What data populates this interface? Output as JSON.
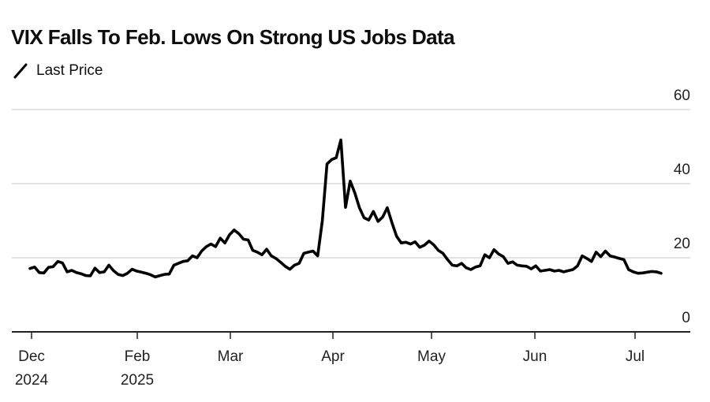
{
  "chart_data": {
    "type": "line",
    "title": "VIX Falls To Feb. Lows On Strong US Jobs Data",
    "legend": [
      {
        "name": "Last Price",
        "color": "#000000"
      }
    ],
    "legend_placement": "top-left",
    "xlabel": "",
    "ylabel": "",
    "ylim": [
      0,
      60
    ],
    "yticks": [
      {
        "value": 60,
        "label": "60"
      },
      {
        "value": 40,
        "label": "40"
      },
      {
        "value": 20,
        "label": "20"
      },
      {
        "value": 0,
        "label": "0"
      }
    ],
    "y_axis_side": "right",
    "grid": true,
    "xlim": [
      "2024-11-30",
      "2025-07-18"
    ],
    "xticks": [
      {
        "date": "2024-12-01",
        "label": "Dec",
        "sublabel": "2024"
      },
      {
        "date": "2025-02-01",
        "label": "Feb",
        "sublabel": "2025"
      },
      {
        "date": "2025-03-01",
        "label": "Mar",
        "sublabel": ""
      },
      {
        "date": "2025-04-01",
        "label": "Apr",
        "sublabel": ""
      },
      {
        "date": "2025-05-01",
        "label": "May",
        "sublabel": ""
      },
      {
        "date": "2025-06-01",
        "label": "Jun",
        "sublabel": ""
      },
      {
        "date": "2025-07-01",
        "label": "Jul",
        "sublabel": ""
      }
    ],
    "series": [
      {
        "name": "Last Price",
        "color": "#000000",
        "points": [
          [
            "2024-12-02",
            17.1
          ],
          [
            "2024-12-04",
            17.5
          ],
          [
            "2024-12-05",
            16.0
          ],
          [
            "2024-12-09",
            15.9
          ],
          [
            "2024-12-10",
            17.4
          ],
          [
            "2024-12-12",
            17.6
          ],
          [
            "2024-12-13",
            19.0
          ],
          [
            "2024-12-17",
            18.6
          ],
          [
            "2024-12-18",
            16.2
          ],
          [
            "2024-12-19",
            16.6
          ],
          [
            "2024-12-20",
            16.0
          ],
          [
            "2024-12-24",
            15.7
          ],
          [
            "2024-12-26",
            15.2
          ],
          [
            "2024-12-30",
            15.1
          ],
          [
            "2025-01-03",
            17.2
          ],
          [
            "2025-01-06",
            16.0
          ],
          [
            "2025-01-08",
            16.2
          ],
          [
            "2025-01-13",
            18.0
          ],
          [
            "2025-01-15",
            16.5
          ],
          [
            "2025-01-17",
            15.5
          ],
          [
            "2025-01-21",
            15.2
          ],
          [
            "2025-01-24",
            15.8
          ],
          [
            "2025-01-28",
            16.9
          ],
          [
            "2025-01-30",
            16.4
          ],
          [
            "2025-02-03",
            16.1
          ],
          [
            "2025-02-05",
            15.8
          ],
          [
            "2025-02-07",
            15.4
          ],
          [
            "2025-02-10",
            14.8
          ],
          [
            "2025-02-14",
            15.2
          ],
          [
            "2025-02-18",
            15.5
          ],
          [
            "2025-02-20",
            15.6
          ],
          [
            "2025-02-21",
            18.0
          ],
          [
            "2025-02-24",
            18.5
          ],
          [
            "2025-02-26",
            19.0
          ],
          [
            "2025-02-27",
            19.2
          ],
          [
            "2025-02-28",
            20.5
          ],
          [
            "2025-03-03",
            20.0
          ],
          [
            "2025-03-04",
            21.8
          ],
          [
            "2025-03-06",
            23.0
          ],
          [
            "2025-03-07",
            23.7
          ],
          [
            "2025-03-10",
            23.0
          ],
          [
            "2025-03-11",
            25.3
          ],
          [
            "2025-03-12",
            24.0
          ],
          [
            "2025-03-14",
            26.2
          ],
          [
            "2025-03-17",
            27.5
          ],
          [
            "2025-03-18",
            26.5
          ],
          [
            "2025-03-19",
            25.0
          ],
          [
            "2025-03-20",
            24.8
          ],
          [
            "2025-03-21",
            22.0
          ],
          [
            "2025-03-24",
            21.5
          ],
          [
            "2025-03-26",
            20.8
          ],
          [
            "2025-03-27",
            22.3
          ],
          [
            "2025-03-28",
            20.5
          ],
          [
            "2025-03-31",
            19.8
          ],
          [
            "2025-04-02",
            18.8
          ],
          [
            "2025-04-03",
            17.7
          ],
          [
            "2025-04-04",
            16.9
          ],
          [
            "2025-04-07",
            18.0
          ],
          [
            "2025-04-08",
            18.5
          ],
          [
            "2025-04-09",
            21.2
          ],
          [
            "2025-04-11",
            21.5
          ],
          [
            "2025-04-14",
            21.8
          ],
          [
            "2025-04-16",
            20.5
          ],
          [
            "2025-04-17",
            30.0
          ],
          [
            "2025-04-18",
            45.3
          ],
          [
            "2025-04-21",
            46.5
          ],
          [
            "2025-04-22",
            47.0
          ],
          [
            "2025-04-23",
            51.8
          ],
          [
            "2025-04-24",
            33.6
          ],
          [
            "2025-04-25",
            40.7
          ],
          [
            "2025-04-28",
            37.5
          ],
          [
            "2025-05-01",
            33.5
          ],
          [
            "2025-05-02",
            30.8
          ],
          [
            "2025-05-05",
            30.2
          ],
          [
            "2025-05-06",
            32.5
          ],
          [
            "2025-05-07",
            29.8
          ],
          [
            "2025-05-09",
            31.0
          ],
          [
            "2025-05-13",
            33.5
          ],
          [
            "2025-05-15",
            29.5
          ],
          [
            "2025-05-19",
            25.8
          ],
          [
            "2025-05-21",
            24.0
          ],
          [
            "2025-05-23",
            24.2
          ],
          [
            "2025-05-26",
            23.7
          ],
          [
            "2025-05-27",
            24.3
          ],
          [
            "2025-05-28",
            22.8
          ],
          [
            "2025-05-30",
            23.4
          ],
          [
            "2025-06-02",
            24.5
          ],
          [
            "2025-06-03",
            23.5
          ],
          [
            "2025-06-05",
            22.0
          ],
          [
            "2025-06-06",
            21.2
          ],
          [
            "2025-06-09",
            19.5
          ],
          [
            "2025-06-10",
            18.0
          ],
          [
            "2025-06-12",
            17.8
          ],
          [
            "2025-06-13",
            18.5
          ],
          [
            "2025-06-16",
            17.3
          ],
          [
            "2025-06-18",
            16.8
          ],
          [
            "2025-06-20",
            17.5
          ],
          [
            "2025-06-23",
            17.8
          ],
          [
            "2025-06-24",
            20.8
          ],
          [
            "2025-06-25",
            20.0
          ],
          [
            "2025-06-26",
            22.2
          ],
          [
            "2025-06-30",
            21.0
          ],
          [
            "2025-07-01",
            20.3
          ],
          [
            "2025-07-03",
            18.5
          ],
          [
            "2025-07-04",
            18.9
          ],
          [
            "2025-07-07",
            18.0
          ],
          [
            "2025-07-09",
            17.8
          ],
          [
            "2025-07-10",
            17.7
          ],
          [
            "2025-07-11",
            17.0
          ],
          [
            "2025-07-14",
            17.8
          ],
          [
            "2025-07-15",
            16.4
          ],
          [
            "2025-07-16",
            16.6
          ],
          [
            "2025-07-17",
            16.8
          ],
          [
            "2025-07-18",
            16.4
          ],
          [
            "2025-07-21",
            16.6
          ],
          [
            "2025-07-22",
            16.2
          ],
          [
            "2025-07-23",
            16.5
          ],
          [
            "2025-07-24",
            16.8
          ],
          [
            "2025-07-25",
            17.8
          ],
          [
            "2025-07-28",
            20.5
          ],
          [
            "2025-07-29",
            19.8
          ],
          [
            "2025-07-30",
            19.0
          ],
          [
            "2025-07-31",
            21.5
          ],
          [
            "2025-08-01",
            20.3
          ],
          [
            "2025-08-04",
            21.8
          ],
          [
            "2025-08-05",
            20.5
          ],
          [
            "2025-08-06",
            20.2
          ],
          [
            "2025-08-07",
            19.8
          ],
          [
            "2025-08-08",
            19.5
          ],
          [
            "2025-08-11",
            16.8
          ],
          [
            "2025-08-12",
            16.2
          ],
          [
            "2025-08-13",
            15.8
          ],
          [
            "2025-08-15",
            15.9
          ],
          [
            "2025-08-18",
            16.1
          ],
          [
            "2025-08-20",
            16.3
          ],
          [
            "2025-08-21",
            16.2
          ],
          [
            "2025-08-22",
            15.8
          ]
        ]
      }
    ]
  }
}
